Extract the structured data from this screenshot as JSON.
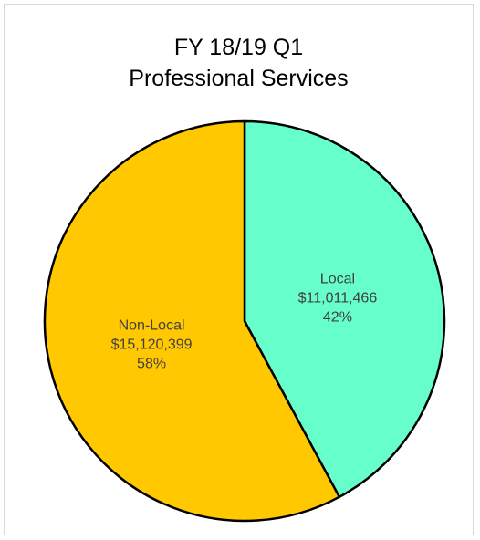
{
  "chart_data": {
    "type": "pie",
    "title": [
      "FY 18/19 Q1",
      "Professional Services"
    ],
    "slices": [
      {
        "name": "Local",
        "value": 11011466,
        "value_label": "$11,011,466",
        "percent_label": "42%",
        "color": "#66ffcc"
      },
      {
        "name": "Non-Local",
        "value": 15120399,
        "value_label": "$15,120,399",
        "percent_label": "58%",
        "color": "#ffc800"
      }
    ],
    "start_angle_deg": 0,
    "direction": "clockwise",
    "border_color": "#000000",
    "legend": "none"
  }
}
